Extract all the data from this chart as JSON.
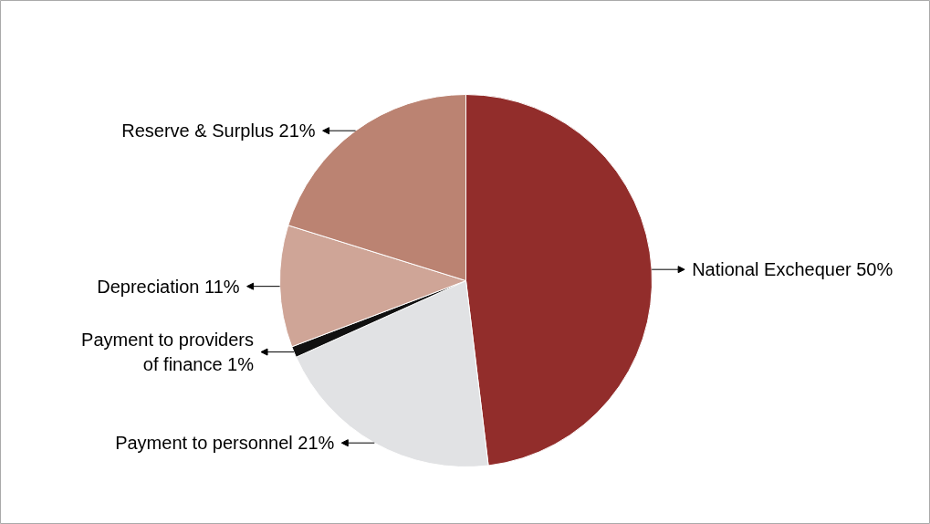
{
  "chart_data": {
    "type": "pie",
    "categories": [
      "National Exchequer",
      "Payment to personnel",
      "Payment to providers of finance",
      "Depreciation",
      "Reserve & Surplus"
    ],
    "values": [
      50,
      21,
      1,
      11,
      21
    ],
    "value_labels": [
      "50%",
      "21%",
      "1%",
      "11%",
      "21%"
    ],
    "colors": [
      "#922d2b",
      "#e1e2e4",
      "#111111",
      "#cfa597",
      "#bb8372"
    ]
  }
}
